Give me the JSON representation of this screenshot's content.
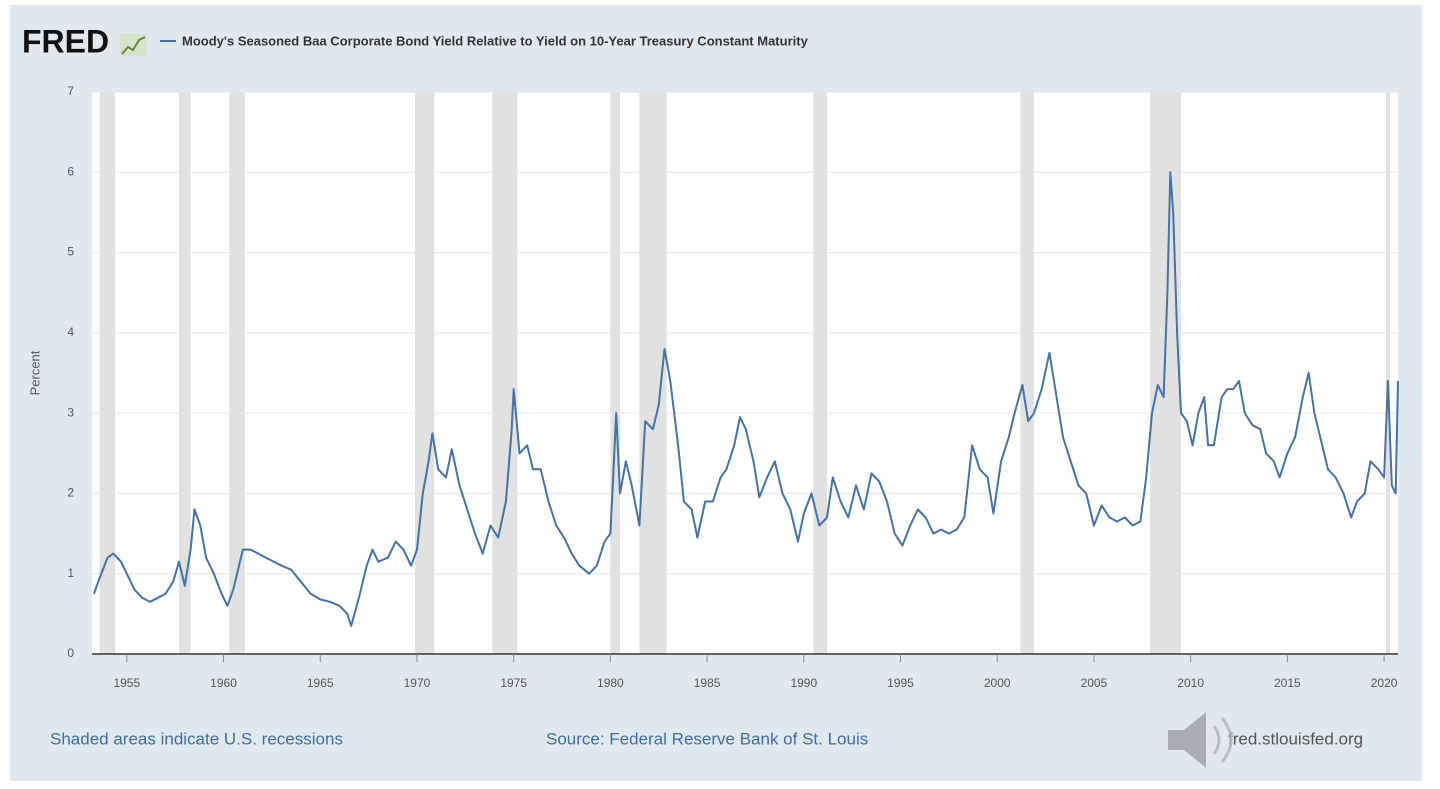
{
  "chart_data": {
    "type": "line",
    "brand": "FRED",
    "y_label": "Percent",
    "note": "Shaded areas indicate U.S. recessions",
    "source": "Source: Federal Reserve Bank of St. Louis",
    "site": "fred.stlouisfed.org",
    "xlim": [
      1953.2,
      2020.72
    ],
    "ylim": [
      0,
      7
    ],
    "xticks": [
      1955,
      1960,
      1965,
      1970,
      1975,
      1980,
      1985,
      1990,
      1995,
      2000,
      2005,
      2010,
      2015,
      2020
    ],
    "yticks": [
      0,
      1,
      2,
      3,
      4,
      5,
      6,
      7
    ],
    "grid": true,
    "recession_color": "#e1e1e1",
    "recessions": [
      [
        1953.6,
        1954.4
      ],
      [
        1957.7,
        1958.3
      ],
      [
        1960.3,
        1961.1
      ],
      [
        1969.9,
        1970.9
      ],
      [
        1973.9,
        1975.2
      ],
      [
        1980.0,
        1980.5
      ],
      [
        1981.5,
        1982.9
      ],
      [
        1990.5,
        1991.2
      ],
      [
        2001.2,
        2001.9
      ],
      [
        2007.9,
        2009.5
      ],
      [
        2020.1,
        2020.3
      ]
    ],
    "x": [
      1953.3,
      1953.6,
      1954.0,
      1954.3,
      1954.7,
      1955.0,
      1955.4,
      1955.8,
      1956.2,
      1956.6,
      1957.0,
      1957.4,
      1957.7,
      1958.0,
      1958.3,
      1958.5,
      1958.8,
      1959.1,
      1959.5,
      1959.9,
      1960.2,
      1960.5,
      1960.8,
      1961.0,
      1961.4,
      1961.8,
      1962.2,
      1962.6,
      1963.0,
      1963.5,
      1964.0,
      1964.5,
      1965.0,
      1965.5,
      1966.0,
      1966.4,
      1966.6,
      1967.0,
      1967.4,
      1967.7,
      1968.0,
      1968.5,
      1968.9,
      1969.3,
      1969.7,
      1970.0,
      1970.3,
      1970.6,
      1970.8,
      1971.1,
      1971.5,
      1971.8,
      1972.2,
      1972.6,
      1973.0,
      1973.4,
      1973.8,
      1974.2,
      1974.6,
      1974.9,
      1975.0,
      1975.3,
      1975.7,
      1976.0,
      1976.4,
      1976.8,
      1977.2,
      1977.6,
      1978.0,
      1978.4,
      1978.9,
      1979.3,
      1979.7,
      1980.0,
      1980.3,
      1980.5,
      1980.8,
      1981.1,
      1981.5,
      1981.8,
      1982.2,
      1982.5,
      1982.8,
      1983.1,
      1983.5,
      1983.8,
      1984.2,
      1984.5,
      1984.9,
      1985.3,
      1985.7,
      1986.0,
      1986.4,
      1986.7,
      1987.0,
      1987.4,
      1987.7,
      1988.1,
      1988.5,
      1988.9,
      1989.3,
      1989.7,
      1990.0,
      1990.4,
      1990.8,
      1991.2,
      1991.5,
      1991.9,
      1992.3,
      1992.7,
      1993.1,
      1993.5,
      1993.9,
      1994.3,
      1994.7,
      1995.1,
      1995.5,
      1995.9,
      1996.3,
      1996.7,
      1997.1,
      1997.5,
      1997.9,
      1998.3,
      1998.7,
      1999.1,
      1999.5,
      1999.8,
      2000.2,
      2000.6,
      2000.9,
      2001.3,
      2001.6,
      2001.9,
      2002.3,
      2002.7,
      2003.0,
      2003.4,
      2003.8,
      2004.2,
      2004.6,
      2005.0,
      2005.4,
      2005.8,
      2006.2,
      2006.6,
      2007.0,
      2007.4,
      2007.7,
      2008.0,
      2008.3,
      2008.6,
      2008.8,
      2008.95,
      2009.1,
      2009.3,
      2009.5,
      2009.8,
      2010.1,
      2010.4,
      2010.7,
      2010.9,
      2011.2,
      2011.6,
      2011.9,
      2012.2,
      2012.5,
      2012.8,
      2013.2,
      2013.6,
      2013.9,
      2014.3,
      2014.6,
      2015.0,
      2015.4,
      2015.8,
      2016.1,
      2016.4,
      2016.8,
      2017.1,
      2017.5,
      2017.9,
      2018.3,
      2018.6,
      2019.0,
      2019.3,
      2019.7,
      2020.0,
      2020.2,
      2020.4,
      2020.6,
      2020.72
    ],
    "series": [
      {
        "name": "Moody's Seasoned Baa Corporate Bond Yield Relative to Yield on 10-Year Treasury Constant Maturity",
        "color": "#4572a7",
        "values": [
          0.75,
          0.95,
          1.2,
          1.25,
          1.15,
          1.0,
          0.8,
          0.7,
          0.65,
          0.7,
          0.75,
          0.9,
          1.15,
          0.85,
          1.3,
          1.8,
          1.6,
          1.2,
          1.0,
          0.75,
          0.6,
          0.8,
          1.1,
          1.3,
          1.3,
          1.25,
          1.2,
          1.15,
          1.1,
          1.05,
          0.9,
          0.75,
          0.68,
          0.65,
          0.6,
          0.5,
          0.35,
          0.7,
          1.1,
          1.3,
          1.15,
          1.2,
          1.4,
          1.3,
          1.1,
          1.3,
          2.0,
          2.4,
          2.75,
          2.3,
          2.2,
          2.55,
          2.1,
          1.8,
          1.5,
          1.25,
          1.6,
          1.45,
          1.9,
          2.8,
          3.3,
          2.5,
          2.6,
          2.3,
          2.3,
          1.9,
          1.6,
          1.45,
          1.25,
          1.1,
          1.0,
          1.1,
          1.4,
          1.5,
          3.0,
          2.0,
          2.4,
          2.1,
          1.6,
          2.9,
          2.8,
          3.1,
          3.8,
          3.4,
          2.6,
          1.9,
          1.8,
          1.45,
          1.9,
          1.9,
          2.2,
          2.3,
          2.6,
          2.95,
          2.8,
          2.4,
          1.95,
          2.2,
          2.4,
          2.0,
          1.8,
          1.4,
          1.75,
          2.0,
          1.6,
          1.7,
          2.2,
          1.9,
          1.7,
          2.1,
          1.8,
          2.25,
          2.15,
          1.9,
          1.5,
          1.35,
          1.6,
          1.8,
          1.7,
          1.5,
          1.55,
          1.5,
          1.55,
          1.7,
          2.6,
          2.3,
          2.2,
          1.75,
          2.4,
          2.7,
          3.0,
          3.35,
          2.9,
          3.0,
          3.3,
          3.75,
          3.3,
          2.7,
          2.4,
          2.1,
          2.0,
          1.6,
          1.85,
          1.7,
          1.65,
          1.7,
          1.6,
          1.65,
          2.2,
          3.0,
          3.35,
          3.2,
          4.5,
          6.0,
          5.5,
          4.0,
          3.0,
          2.9,
          2.6,
          3.0,
          3.2,
          2.6,
          2.6,
          3.2,
          3.3,
          3.3,
          3.4,
          3.0,
          2.85,
          2.8,
          2.5,
          2.4,
          2.2,
          2.5,
          2.7,
          3.2,
          3.5,
          3.0,
          2.6,
          2.3,
          2.2,
          2.0,
          1.7,
          1.9,
          2.0,
          2.4,
          2.3,
          2.2,
          3.4,
          2.1,
          2.0,
          3.4
        ]
      }
    ]
  }
}
